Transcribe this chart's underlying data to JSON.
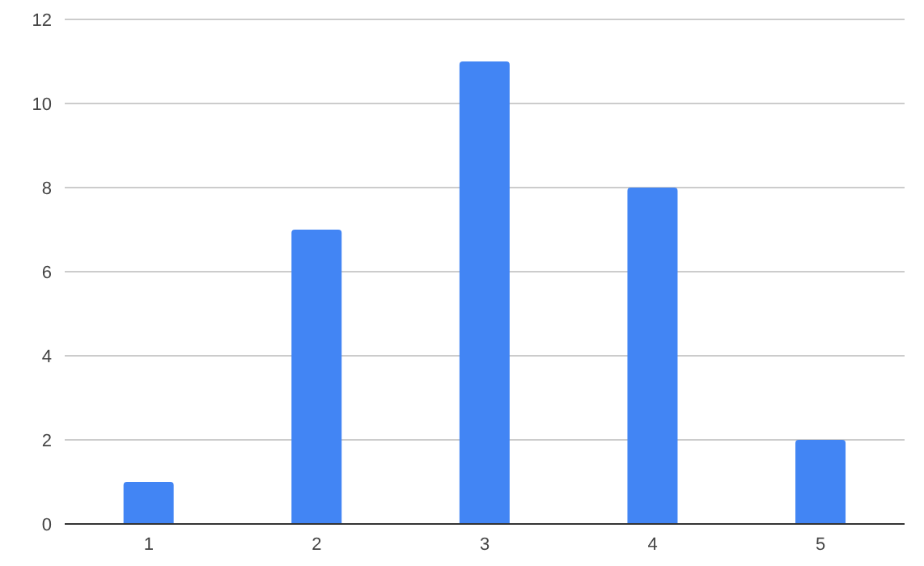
{
  "chart_data": {
    "type": "bar",
    "categories": [
      "1",
      "2",
      "3",
      "4",
      "5"
    ],
    "values": [
      1,
      7,
      11,
      8,
      2
    ],
    "color": "#4285f4",
    "ylim": [
      0,
      12
    ],
    "yticks": [
      0,
      2,
      4,
      6,
      8,
      10,
      12
    ],
    "grid": "y",
    "legend": false
  }
}
